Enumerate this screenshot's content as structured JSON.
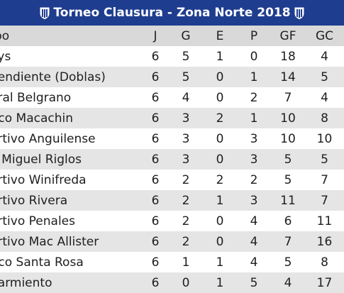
{
  "header": {
    "title": "Torneo Clausura - Zona Norte 2018",
    "icon_left": "club-crest-icon",
    "icon_right": "club-crest-icon",
    "background": "#1f3d8f"
  },
  "table": {
    "columns": [
      "po",
      "J",
      "G",
      "E",
      "P",
      "GF",
      "GC"
    ],
    "rows": [
      {
        "team": "oys",
        "j": "6",
        "g": "5",
        "e": "1",
        "p": "0",
        "gf": "18",
        "gc": "4"
      },
      {
        "team": "pendiente (Doblas)",
        "j": "6",
        "g": "5",
        "e": "0",
        "p": "1",
        "gf": "14",
        "gc": "5"
      },
      {
        "team": "eral Belgrano",
        "j": "6",
        "g": "4",
        "e": "0",
        "p": "2",
        "gf": "7",
        "gc": "4"
      },
      {
        "team": "tico Macachin",
        "j": "6",
        "g": "3",
        "e": "2",
        "p": "1",
        "gf": "10",
        "gc": "8"
      },
      {
        "team": "ortivo Anguilense",
        "j": "6",
        "g": "3",
        "e": "0",
        "p": "3",
        "gf": "10",
        "gc": "10"
      },
      {
        "team": "n Miguel Riglos",
        "j": "6",
        "g": "3",
        "e": "0",
        "p": "3",
        "gf": "5",
        "gc": "5"
      },
      {
        "team": "ortivo Winifreda",
        "j": "6",
        "g": "2",
        "e": "2",
        "p": "2",
        "gf": "5",
        "gc": "7"
      },
      {
        "team": "ortivo Rivera",
        "j": "6",
        "g": "2",
        "e": "1",
        "p": "3",
        "gf": "11",
        "gc": "7"
      },
      {
        "team": "ortivo Penales",
        "j": "6",
        "g": "2",
        "e": "0",
        "p": "4",
        "gf": "6",
        "gc": "11"
      },
      {
        "team": "ortivo Mac Allister",
        "j": "6",
        "g": "2",
        "e": "0",
        "p": "4",
        "gf": "7",
        "gc": "16"
      },
      {
        "team": "tico Santa Rosa",
        "j": "6",
        "g": "1",
        "e": "1",
        "p": "4",
        "gf": "5",
        "gc": "8"
      },
      {
        "team": "Sarmiento",
        "j": "6",
        "g": "0",
        "e": "1",
        "p": "5",
        "gf": "4",
        "gc": "17"
      }
    ]
  }
}
